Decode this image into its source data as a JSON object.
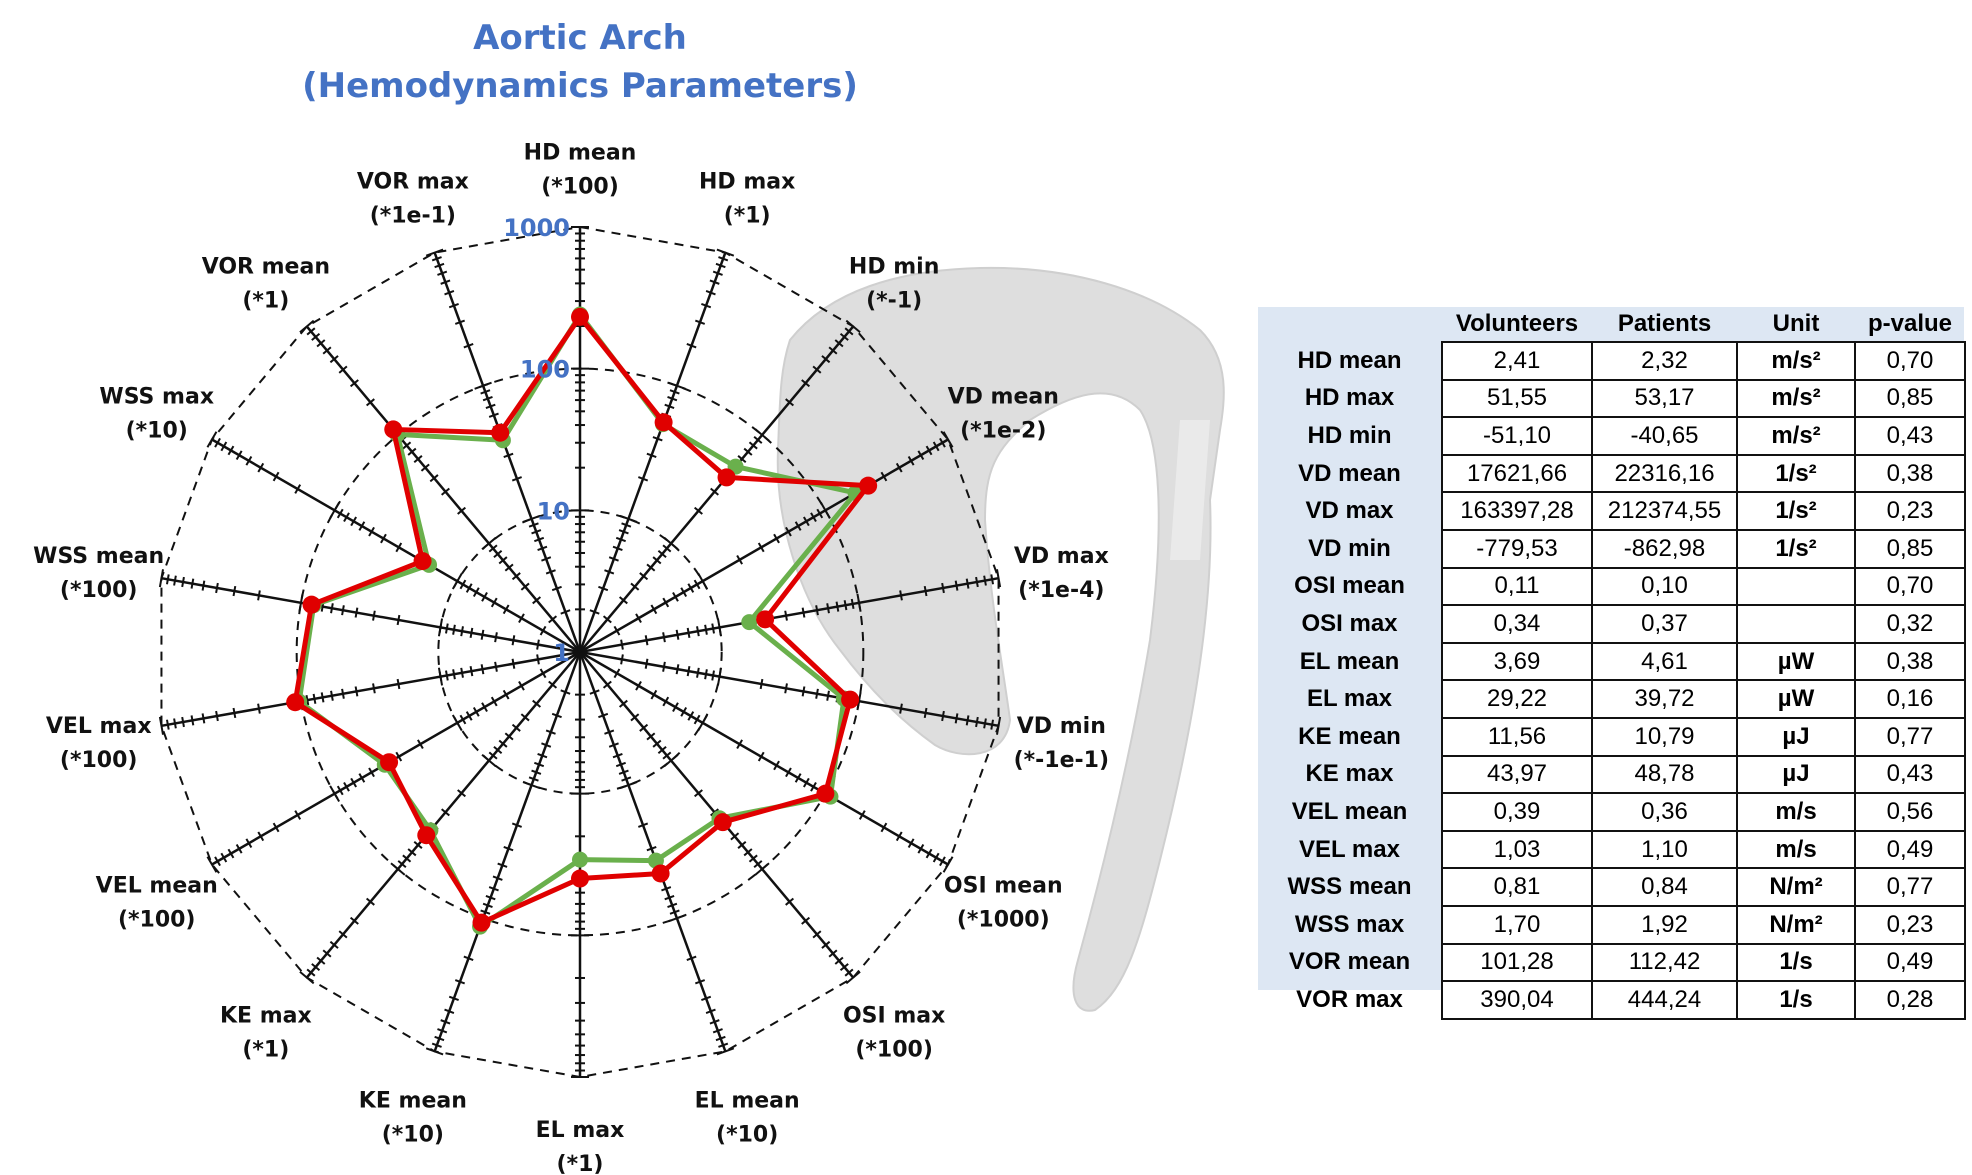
{
  "chart_data": [
    {
      "type": "radar",
      "title": "Aortic Arch (Hemodynamics Parameters)",
      "title_lines": [
        "Aortic Arch",
        "(Hemodynamics Parameters)"
      ],
      "scale": "log",
      "rlim": [
        1,
        1000
      ],
      "ring_labels": [
        "1",
        "10",
        "100",
        "1000"
      ],
      "grid": true,
      "axes": [
        {
          "name": "HD mean",
          "factor": "(*100)"
        },
        {
          "name": "HD max",
          "factor": "(*1)"
        },
        {
          "name": "HD min",
          "factor": "(*-1)"
        },
        {
          "name": "VD mean",
          "factor": "(*1e-2)"
        },
        {
          "name": "VD max",
          "factor": "(*1e-4)"
        },
        {
          "name": "VD min",
          "factor": "(*-1e-1)"
        },
        {
          "name": "OSI mean",
          "factor": "(*1000)"
        },
        {
          "name": "OSI max",
          "factor": "(*100)"
        },
        {
          "name": "EL mean",
          "factor": "(*10)"
        },
        {
          "name": "EL max",
          "factor": "(*1)"
        },
        {
          "name": "KE mean",
          "factor": "(*10)"
        },
        {
          "name": "KE max",
          "factor": "(*1)"
        },
        {
          "name": "VEL mean",
          "factor": "(*100)"
        },
        {
          "name": "VEL max",
          "factor": "(*100)"
        },
        {
          "name": "WSS mean",
          "factor": "(*100)"
        },
        {
          "name": "WSS max",
          "factor": "(*10)"
        },
        {
          "name": "VOR mean",
          "factor": "(*1)"
        },
        {
          "name": "VOR max",
          "factor": "(*1e-1)"
        }
      ],
      "series": [
        {
          "color": "#6ab04c",
          "values": [
            241,
            51.55,
            51.1,
            176.2,
            16.34,
            77.95,
            110,
            34,
            36.9,
            29.22,
            115.6,
            43.97,
            39,
            103,
            81,
            17.0,
            101.28,
            39.0
          ]
        },
        {
          "color": "#e00000",
          "values": [
            232,
            53.17,
            40.65,
            223.2,
            21.24,
            86.3,
            100,
            37,
            46.1,
            39.72,
            107.9,
            48.78,
            36,
            110,
            84,
            19.2,
            112.42,
            44.4
          ]
        }
      ]
    },
    {
      "type": "table",
      "columns": [
        "",
        "Volunteers",
        "Patients",
        "Unit",
        "p-value"
      ],
      "rows": [
        [
          "HD mean",
          "2,41",
          "2,32",
          "m/s²",
          "0,70"
        ],
        [
          "HD max",
          "51,55",
          "53,17",
          "m/s²",
          "0,85"
        ],
        [
          "HD min",
          "-51,10",
          "-40,65",
          "m/s²",
          "0,43"
        ],
        [
          "VD mean",
          "17621,66",
          "22316,16",
          "1/s²",
          "0,38"
        ],
        [
          "VD max",
          "163397,28",
          "212374,55",
          "1/s²",
          "0,23"
        ],
        [
          "VD min",
          "-779,53",
          "-862,98",
          "1/s²",
          "0,85"
        ],
        [
          "OSI mean",
          "0,11",
          "0,10",
          "",
          "0,70"
        ],
        [
          "OSI max",
          "0,34",
          "0,37",
          "",
          "0,32"
        ],
        [
          "EL mean",
          "3,69",
          "4,61",
          "µW",
          "0,38"
        ],
        [
          "EL max",
          "29,22",
          "39,72",
          "µW",
          "0,16"
        ],
        [
          "KE mean",
          "11,56",
          "10,79",
          "µJ",
          "0,77"
        ],
        [
          "KE max",
          "43,97",
          "48,78",
          "µJ",
          "0,43"
        ],
        [
          "VEL mean",
          "0,39",
          "0,36",
          "m/s",
          "0,56"
        ],
        [
          "VEL max",
          "1,03",
          "1,10",
          "m/s",
          "0,49"
        ],
        [
          "WSS mean",
          "0,81",
          "0,84",
          "N/m²",
          "0,77"
        ],
        [
          "WSS max",
          "1,70",
          "1,92",
          "N/m²",
          "0,23"
        ],
        [
          "VOR mean",
          "101,28",
          "112,42",
          "1/s",
          "0,49"
        ],
        [
          "VOR max",
          "390,04",
          "444,24",
          "1/s",
          "0,28"
        ]
      ]
    }
  ],
  "colors": {
    "title": "#4472c4",
    "table_header_bg": "#dde7f3",
    "aorta": "#dcdcdc"
  }
}
